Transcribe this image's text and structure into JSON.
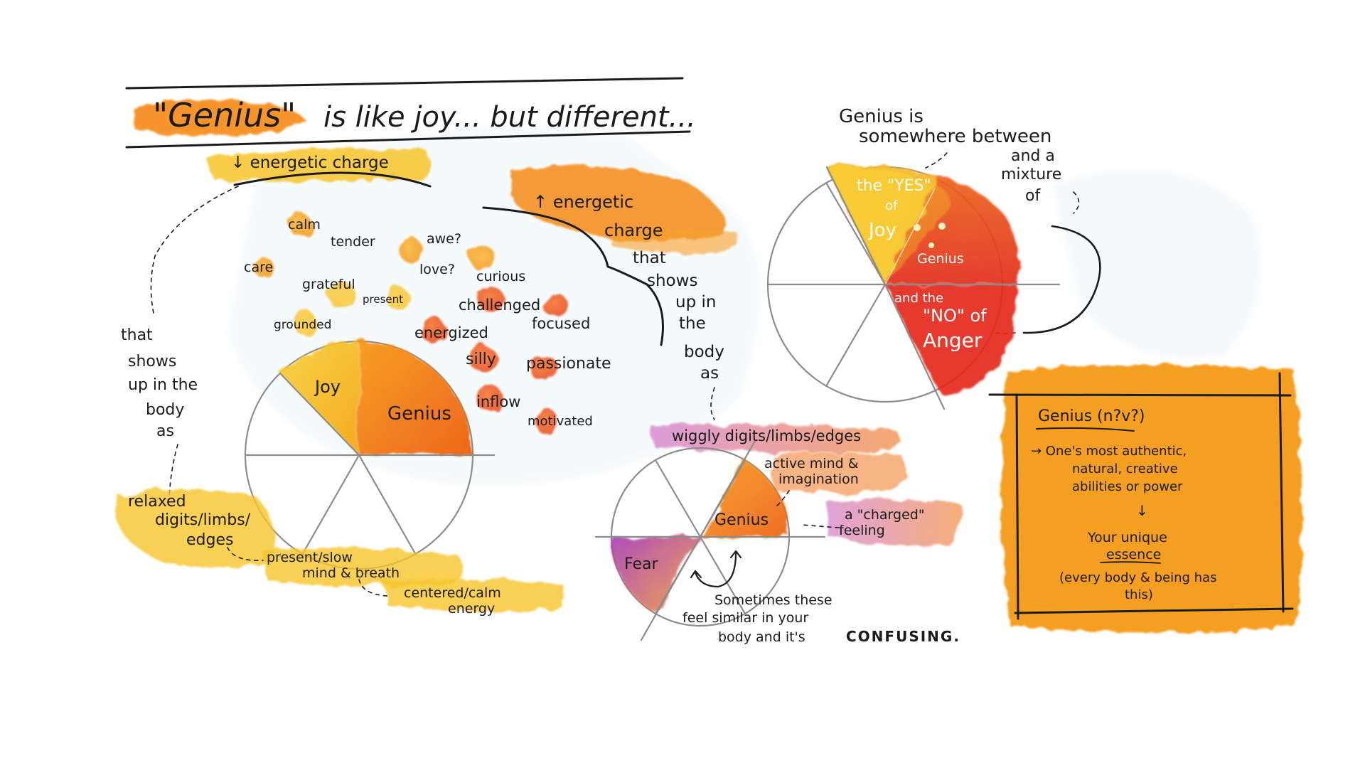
{
  "title": {
    "genius": "\"Genius\"",
    "rest": "is like joy... but different..."
  },
  "left": {
    "low_charge": "↓ energetic charge",
    "words": [
      "calm",
      "tender",
      "awe?",
      "care",
      "love?",
      "grateful",
      "present",
      "grounded",
      "curious",
      "challenged",
      "focused",
      "energized",
      "silly",
      "passionate",
      "inflow",
      "motivated"
    ],
    "shows_up": [
      "that",
      "shows",
      "up in the",
      "body",
      "as"
    ],
    "pie_joy": "Joy",
    "pie_genius": "Genius",
    "body_notes": [
      "relaxed",
      "digits/limbs/",
      "edges",
      "present/slow",
      "mind & breath",
      "centered/calm",
      "energy"
    ]
  },
  "middle": {
    "high_charge": [
      "↑ energetic",
      "charge",
      "that",
      "shows",
      "up in",
      "the",
      "body",
      "as"
    ],
    "wiggly": "wiggly digits/limbs/edges",
    "active_mind": [
      "active mind &",
      "imagination"
    ],
    "charged": [
      "a \"charged\"",
      "feeling"
    ],
    "pie_genius": "Genius",
    "pie_fear": "Fear",
    "confusing": [
      "Sometimes these",
      "feel similar in your",
      "body and it's"
    ],
    "confusing_caps": "CONFUSING."
  },
  "right": {
    "heading": [
      "Genius is",
      "somewhere between"
    ],
    "mixture": [
      "and a",
      "mixture",
      "of"
    ],
    "yes": [
      "the \"YES\"",
      "of",
      "Joy"
    ],
    "genius": "Genius",
    "no": [
      "and the",
      "\"NO\" of",
      "Anger"
    ]
  },
  "definition": {
    "term": "Genius (n?v?)",
    "lines": [
      "→ One's most authentic,",
      "natural, creative",
      "abilities or power"
    ],
    "arrow": "↓",
    "essence": [
      "Your unique",
      "essence"
    ],
    "note": [
      "(every body & being has",
      "this)"
    ]
  },
  "colors": {
    "yellow": "#f7c52a",
    "orange": "#f58a12",
    "deep_orange": "#ec6a0e",
    "red": "#e8341c",
    "purple": "#a23ab8",
    "box": "#f49a16"
  }
}
